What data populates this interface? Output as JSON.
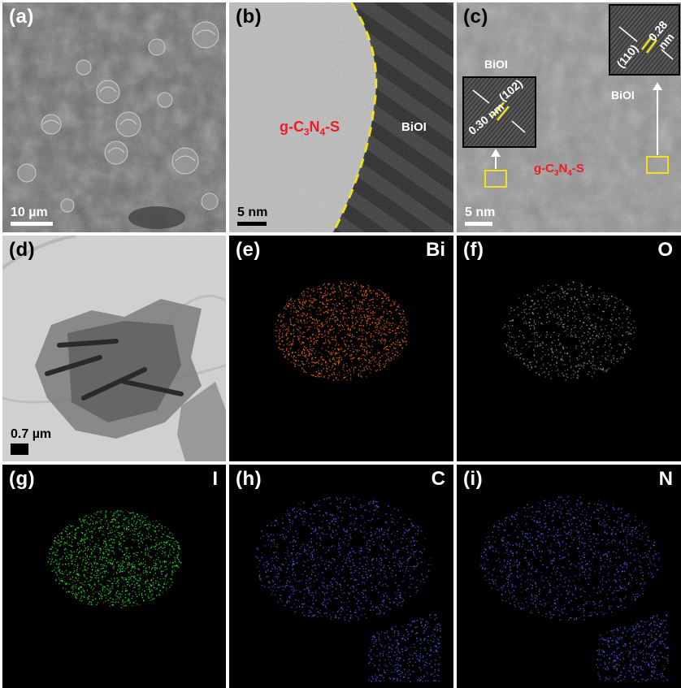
{
  "panels": {
    "a": {
      "label": "(a)",
      "scale": "10 µm"
    },
    "b": {
      "label": "(b)",
      "scale": "5 nm",
      "region_left": "g-C3N4-S",
      "region_right": "BiOI"
    },
    "c": {
      "label": "(c)",
      "scale": "5 nm",
      "region_center": "g-C3N4-S",
      "biol_left": "BiOI",
      "biol_right": "BiOI",
      "inset1": {
        "plane": "(102)",
        "spacing": "0.30 nm"
      },
      "inset2": {
        "plane": "(110)",
        "spacing": "0.28 nm"
      }
    },
    "d": {
      "label": "(d)",
      "scale": "0.7 µm"
    },
    "e": {
      "label": "(e)",
      "element": "Bi",
      "color": "#e8642a"
    },
    "f": {
      "label": "(f)",
      "element": "O",
      "color": "#d8d8d8"
    },
    "g": {
      "label": "(g)",
      "element": "I",
      "color": "#2fd13a"
    },
    "h": {
      "label": "(h)",
      "element": "C",
      "color": "#5a5ae6"
    },
    "i": {
      "label": "(i)",
      "element": "N",
      "color": "#5a5ae6"
    }
  },
  "colors": {
    "annotation_red": "#ee1c24",
    "marker_yellow": "#f0e020"
  }
}
